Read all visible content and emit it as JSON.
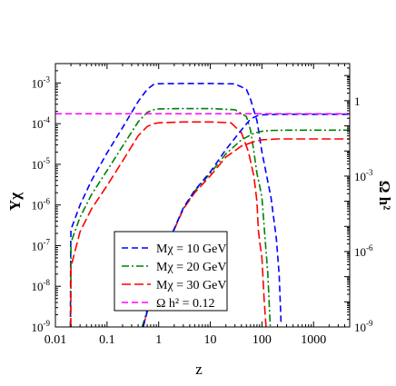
{
  "chart_data": {
    "type": "line",
    "xlabel": "z",
    "ylabel_left": "Yχ",
    "ylabel_right": "Ω h²",
    "x_scale": "log",
    "y_scale": "log",
    "xlim": [
      0.01,
      5000
    ],
    "ylim_left": [
      1e-09,
      0.003
    ],
    "ylim_right": [
      1e-09,
      30
    ],
    "x_ticks": [
      {
        "value": 0.01,
        "label": "0.01"
      },
      {
        "value": 0.1,
        "label": "0.1"
      },
      {
        "value": 1,
        "label": "1"
      },
      {
        "value": 10,
        "label": "10"
      },
      {
        "value": 100,
        "label": "100"
      },
      {
        "value": 1000,
        "label": "1000"
      }
    ],
    "y_ticks_left": [
      {
        "value": 1e-09,
        "base": "10",
        "exp": "-9"
      },
      {
        "value": 1e-08,
        "base": "10",
        "exp": "-8"
      },
      {
        "value": 1e-07,
        "base": "10",
        "exp": "-7"
      },
      {
        "value": 1e-06,
        "base": "10",
        "exp": "-6"
      },
      {
        "value": 1e-05,
        "base": "10",
        "exp": "-5"
      },
      {
        "value": 0.0001,
        "base": "10",
        "exp": "-4"
      },
      {
        "value": 0.001,
        "base": "10",
        "exp": "-3"
      }
    ],
    "y_ticks_right": [
      {
        "value": 1e-09,
        "label": "10",
        "exp": "-9"
      },
      {
        "value": 1e-06,
        "label": "10",
        "exp": "-6"
      },
      {
        "value": 0.001,
        "label": "10",
        "exp": "-3"
      },
      {
        "value": 1,
        "label": "1",
        "exp": ""
      }
    ],
    "legend": {
      "position": "lower-left",
      "entries": [
        {
          "label": "Mχ = 10 GeV",
          "color": "#0000ff",
          "dash": "dashed"
        },
        {
          "label": "Mχ = 20 GeV",
          "color": "#008000",
          "dash": "dashdot"
        },
        {
          "label": "Mχ = 30 GeV",
          "color": "#ff0000",
          "dash": "longdash"
        },
        {
          "label": "Ω h² = 0.12",
          "color": "#ff00ff",
          "dash": "dashed"
        }
      ]
    },
    "series": [
      {
        "legend_label": "Mχ = 10 GeV",
        "color": "#0000ff",
        "dash": "dashed",
        "axis": "left",
        "points": [
          [
            0.0195,
            1e-09
          ],
          [
            0.0198,
            1e-07
          ],
          [
            0.02,
            2.5e-07
          ],
          [
            0.03,
            1e-06
          ],
          [
            0.05,
            4e-06
          ],
          [
            0.1,
            1.9e-05
          ],
          [
            0.2,
            8e-05
          ],
          [
            0.4,
            0.00035
          ],
          [
            0.6,
            0.0007
          ],
          [
            0.8,
            0.00092
          ],
          [
            1,
            0.00096
          ],
          [
            3,
            0.00097
          ],
          [
            10,
            0.00097
          ],
          [
            30,
            0.00095
          ],
          [
            50,
            0.0007
          ],
          [
            60,
            0.0004
          ],
          [
            80,
            0.00012
          ],
          [
            100,
            2e-05
          ],
          [
            150,
            1.5e-06
          ],
          [
            190,
            1.5e-07
          ],
          [
            215,
            2e-08
          ],
          [
            235,
            1.2e-09
          ]
        ]
      },
      {
        "legend_label": "Mχ = 20 GeV",
        "color": "#008000",
        "dash": "dashdot",
        "axis": "left",
        "points": [
          [
            0.0198,
            1e-09
          ],
          [
            0.02,
            1.2e-07
          ],
          [
            0.03,
            5e-07
          ],
          [
            0.05,
            1.8e-06
          ],
          [
            0.1,
            7e-06
          ],
          [
            0.2,
            2.8e-05
          ],
          [
            0.4,
            0.00011
          ],
          [
            0.6,
            0.00019
          ],
          [
            0.8,
            0.00022
          ],
          [
            1,
            0.00023
          ],
          [
            3,
            0.000235
          ],
          [
            10,
            0.000235
          ],
          [
            30,
            0.00022
          ],
          [
            50,
            0.00015
          ],
          [
            60,
            7e-05
          ],
          [
            70,
            2e-05
          ],
          [
            80,
            6e-06
          ],
          [
            90,
            3e-06
          ],
          [
            100,
            1.5e-06
          ],
          [
            115,
            1.5e-07
          ],
          [
            130,
            2e-08
          ],
          [
            145,
            1e-09
          ]
        ]
      },
      {
        "legend_label": "Mχ = 30 GeV",
        "color": "#ff0000",
        "dash": "longdash",
        "axis": "left",
        "points": [
          [
            0.0198,
            1e-09
          ],
          [
            0.02,
            3e-08
          ],
          [
            0.03,
            2.2e-07
          ],
          [
            0.05,
            8e-07
          ],
          [
            0.1,
            3e-06
          ],
          [
            0.2,
            1.2e-05
          ],
          [
            0.4,
            5e-05
          ],
          [
            0.6,
            8.5e-05
          ],
          [
            0.8,
            0.0001
          ],
          [
            1,
            0.000105
          ],
          [
            3,
            0.00011
          ],
          [
            10,
            0.00011
          ],
          [
            25,
            0.000105
          ],
          [
            40,
            6e-05
          ],
          [
            55,
            2e-05
          ],
          [
            70,
            5e-06
          ],
          [
            80,
            1.2e-06
          ],
          [
            85,
            2.5e-07
          ],
          [
            90,
            1.3e-07
          ],
          [
            100,
            5e-08
          ],
          [
            110,
            5e-09
          ],
          [
            120,
            1e-09
          ]
        ]
      },
      {
        "legend_label": "Mχ = 20 GeV",
        "color": "#008000",
        "dash": "dashdot",
        "axis": "left",
        "points": [
          [
            0.48,
            1e-09
          ],
          [
            0.7,
            5e-09
          ],
          [
            1,
            2.5e-08
          ],
          [
            1.5,
            1.2e-07
          ],
          [
            2,
            2.5e-07
          ],
          [
            3,
            8e-07
          ],
          [
            5,
            2.2e-06
          ],
          [
            10,
            6e-06
          ],
          [
            20,
            1.8e-05
          ],
          [
            40,
            4e-05
          ],
          [
            70,
            5.8e-05
          ],
          [
            100,
            6.5e-05
          ],
          [
            150,
            6.8e-05
          ],
          [
            300,
            6.9e-05
          ],
          [
            1000,
            6.9e-05
          ],
          [
            5000,
            6.9e-05
          ]
        ]
      },
      {
        "legend_label": "Mχ = 30 GeV",
        "color": "#ff0000",
        "dash": "longdash",
        "axis": "left",
        "points": [
          [
            0.5,
            1e-09
          ],
          [
            0.7,
            5e-09
          ],
          [
            1,
            2.5e-08
          ],
          [
            1.5,
            1.2e-07
          ],
          [
            2,
            2.5e-07
          ],
          [
            3,
            8e-07
          ],
          [
            5,
            2e-06
          ],
          [
            10,
            5.2e-06
          ],
          [
            20,
            1.5e-05
          ],
          [
            40,
            2.8e-05
          ],
          [
            70,
            3.6e-05
          ],
          [
            100,
            4e-05
          ],
          [
            200,
            4.2e-05
          ],
          [
            500,
            4.2e-05
          ],
          [
            5000,
            4.2e-05
          ]
        ]
      },
      {
        "legend_label": "Mχ = 10 GeV",
        "color": "#0000ff",
        "dash": "dashed",
        "axis": "left",
        "points": [
          [
            0.5,
            1e-09
          ],
          [
            0.7,
            5e-09
          ],
          [
            1,
            2.6e-08
          ],
          [
            1.5,
            1.2e-07
          ],
          [
            2,
            2.6e-07
          ],
          [
            3,
            8.5e-07
          ],
          [
            5,
            2.3e-06
          ],
          [
            10,
            6.5e-06
          ],
          [
            20,
            2.3e-05
          ],
          [
            40,
            7e-05
          ],
          [
            60,
            0.00013
          ],
          [
            80,
            0.000155
          ],
          [
            100,
            0.000165
          ],
          [
            200,
            0.00017
          ],
          [
            1000,
            0.00017
          ],
          [
            5000,
            0.00017
          ]
        ]
      },
      {
        "legend_label": "Ω h² = 0.12",
        "color": "#ff00ff",
        "dash": "dashed",
        "axis": "left",
        "points": [
          [
            0.01,
            0.000175
          ],
          [
            5000,
            0.000175
          ]
        ]
      }
    ]
  }
}
